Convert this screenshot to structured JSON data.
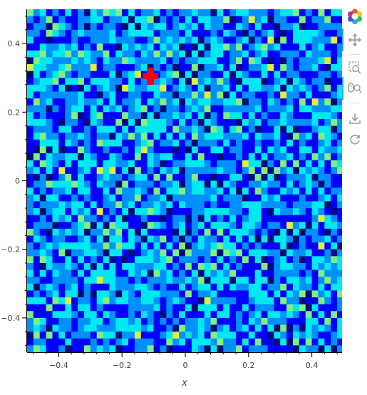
{
  "chart_data": {
    "type": "heatmap",
    "title": "",
    "xlabel": "x",
    "ylabel": "",
    "xlim": [
      -0.5,
      0.5
    ],
    "ylim": [
      -0.5,
      0.5
    ],
    "grid_size": [
      50,
      50
    ],
    "x_ticks": [
      -0.4,
      -0.2,
      0,
      0.2,
      0.4
    ],
    "y_ticks": [
      -0.4,
      -0.2,
      0,
      0.2,
      0.4
    ],
    "x_tick_labels": [
      "−0.4",
      "−0.2",
      "0",
      "0.2",
      "0.4"
    ],
    "y_tick_labels": [
      "−0.4",
      "−0.2",
      "0",
      "0.2",
      "0.4"
    ],
    "colormap": [
      "#000a7a",
      "#0000ff",
      "#0090ff",
      "#00e8f0",
      "#80f080",
      "#e0f040",
      "#ff8c00",
      "#ff0000"
    ],
    "hotspot": {
      "x": -0.11,
      "y": 0.305,
      "color": "#ff0000"
    },
    "grid": false,
    "legend": "none"
  },
  "toolbar": {
    "logo_icon": "bokeh-logo-icon",
    "tools": [
      "pan-icon",
      "box-zoom-icon",
      "wheel-zoom-icon",
      "save-icon",
      "reset-icon"
    ],
    "active_color": "#26aae1"
  }
}
